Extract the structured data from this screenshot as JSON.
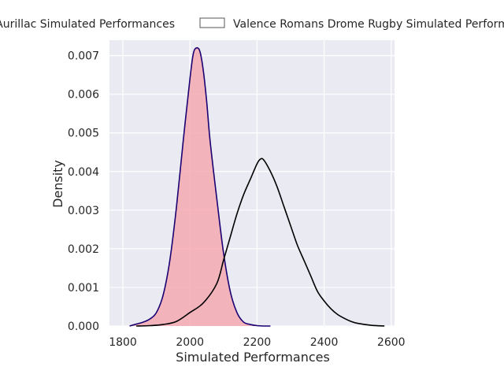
{
  "chart_data": {
    "type": "area",
    "title": "",
    "xlabel": "Simulated Performances",
    "ylabel": "Density",
    "xlim": [
      1760,
      2610
    ],
    "ylim": [
      0,
      0.0074
    ],
    "xticks": [
      1800,
      2000,
      2200,
      2400,
      2600
    ],
    "yticks": [
      0.0,
      0.001,
      0.002,
      0.003,
      0.004,
      0.005,
      0.006,
      0.007
    ],
    "xtick_labels": [
      "1800",
      "2000",
      "2200",
      "2400",
      "2600"
    ],
    "ytick_labels": [
      "0.000",
      "0.001",
      "0.002",
      "0.003",
      "0.004",
      "0.005",
      "0.006",
      "0.007"
    ],
    "grid": true,
    "legend_position": "top-center",
    "series": [
      {
        "name": "Aurillac Simulated Performances",
        "fill": "#f4a9b1",
        "line": "#1a0072",
        "filled": true,
        "x": [
          1820,
          1840,
          1860,
          1880,
          1900,
          1920,
          1940,
          1960,
          1980,
          2000,
          2010,
          2020,
          2030,
          2040,
          2050,
          2060,
          2080,
          2100,
          2120,
          2140,
          2160,
          2180,
          2200,
          2220,
          2240
        ],
        "y": [
          0.0,
          5e-05,
          0.0001,
          0.00018,
          0.00035,
          0.0008,
          0.0017,
          0.0031,
          0.0048,
          0.0064,
          0.00705,
          0.0072,
          0.0071,
          0.0066,
          0.0058,
          0.0048,
          0.0033,
          0.0019,
          0.0009,
          0.00035,
          0.0001,
          4e-05,
          1e-05,
          0.0,
          0.0
        ]
      },
      {
        "name": "Valence Romans Drome Rugby Simulated Performances",
        "fill": "none",
        "line": "#000000",
        "filled": false,
        "x": [
          1840,
          1880,
          1920,
          1960,
          2000,
          2040,
          2080,
          2100,
          2120,
          2140,
          2160,
          2180,
          2200,
          2210,
          2220,
          2240,
          2260,
          2280,
          2300,
          2320,
          2340,
          2360,
          2380,
          2400,
          2420,
          2440,
          2460,
          2480,
          2500,
          2540,
          2580
        ],
        "y": [
          0.0,
          1e-05,
          4e-05,
          0.00012,
          0.00035,
          0.0006,
          0.0011,
          0.0017,
          0.0023,
          0.0029,
          0.0034,
          0.0038,
          0.0042,
          0.00432,
          0.0043,
          0.004,
          0.0036,
          0.0031,
          0.0026,
          0.0021,
          0.0017,
          0.0013,
          0.0009,
          0.00065,
          0.00045,
          0.0003,
          0.0002,
          0.00012,
          7e-05,
          2e-05,
          0.0
        ]
      }
    ]
  }
}
